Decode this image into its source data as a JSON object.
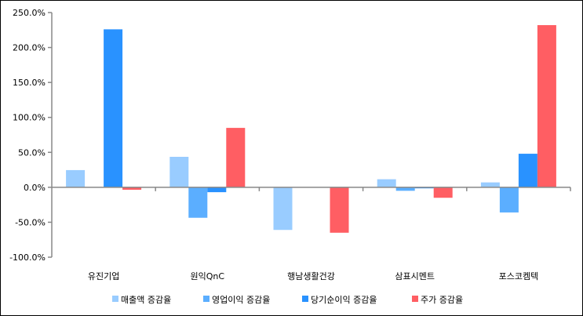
{
  "chart_data": {
    "type": "bar",
    "categories": [
      "유진기업",
      "원익QnC",
      "행남생활건강",
      "삼표시멘트",
      "포스코켐텍"
    ],
    "series": [
      {
        "name": "매출액 증감율",
        "color": "#99CCFF",
        "values": [
          24.6,
          43.6,
          -61,
          11.5,
          7
        ]
      },
      {
        "name": "영업이익 증감율",
        "color": "#5BAEFF",
        "values": [
          0,
          -43.6,
          0,
          -5,
          -36
        ]
      },
      {
        "name": "당기순이익 증감율",
        "color": "#2992FF",
        "values": [
          226,
          -7,
          0,
          -1.5,
          48
        ]
      },
      {
        "name": "주가 증감율",
        "color": "#FF5E63",
        "values": [
          -3.5,
          85,
          -65,
          -15,
          232
        ]
      }
    ],
    "ylim": [
      -100,
      250
    ],
    "yticks": [
      -100,
      -50,
      0,
      50,
      100,
      150,
      200,
      250
    ],
    "ytick_labels": [
      "-100.0%",
      "-50.0%",
      "0.0%",
      "50.0%",
      "100.0%",
      "150.0%",
      "200.0%",
      "250.0%"
    ],
    "legend_position": "bottom",
    "grid": false
  }
}
